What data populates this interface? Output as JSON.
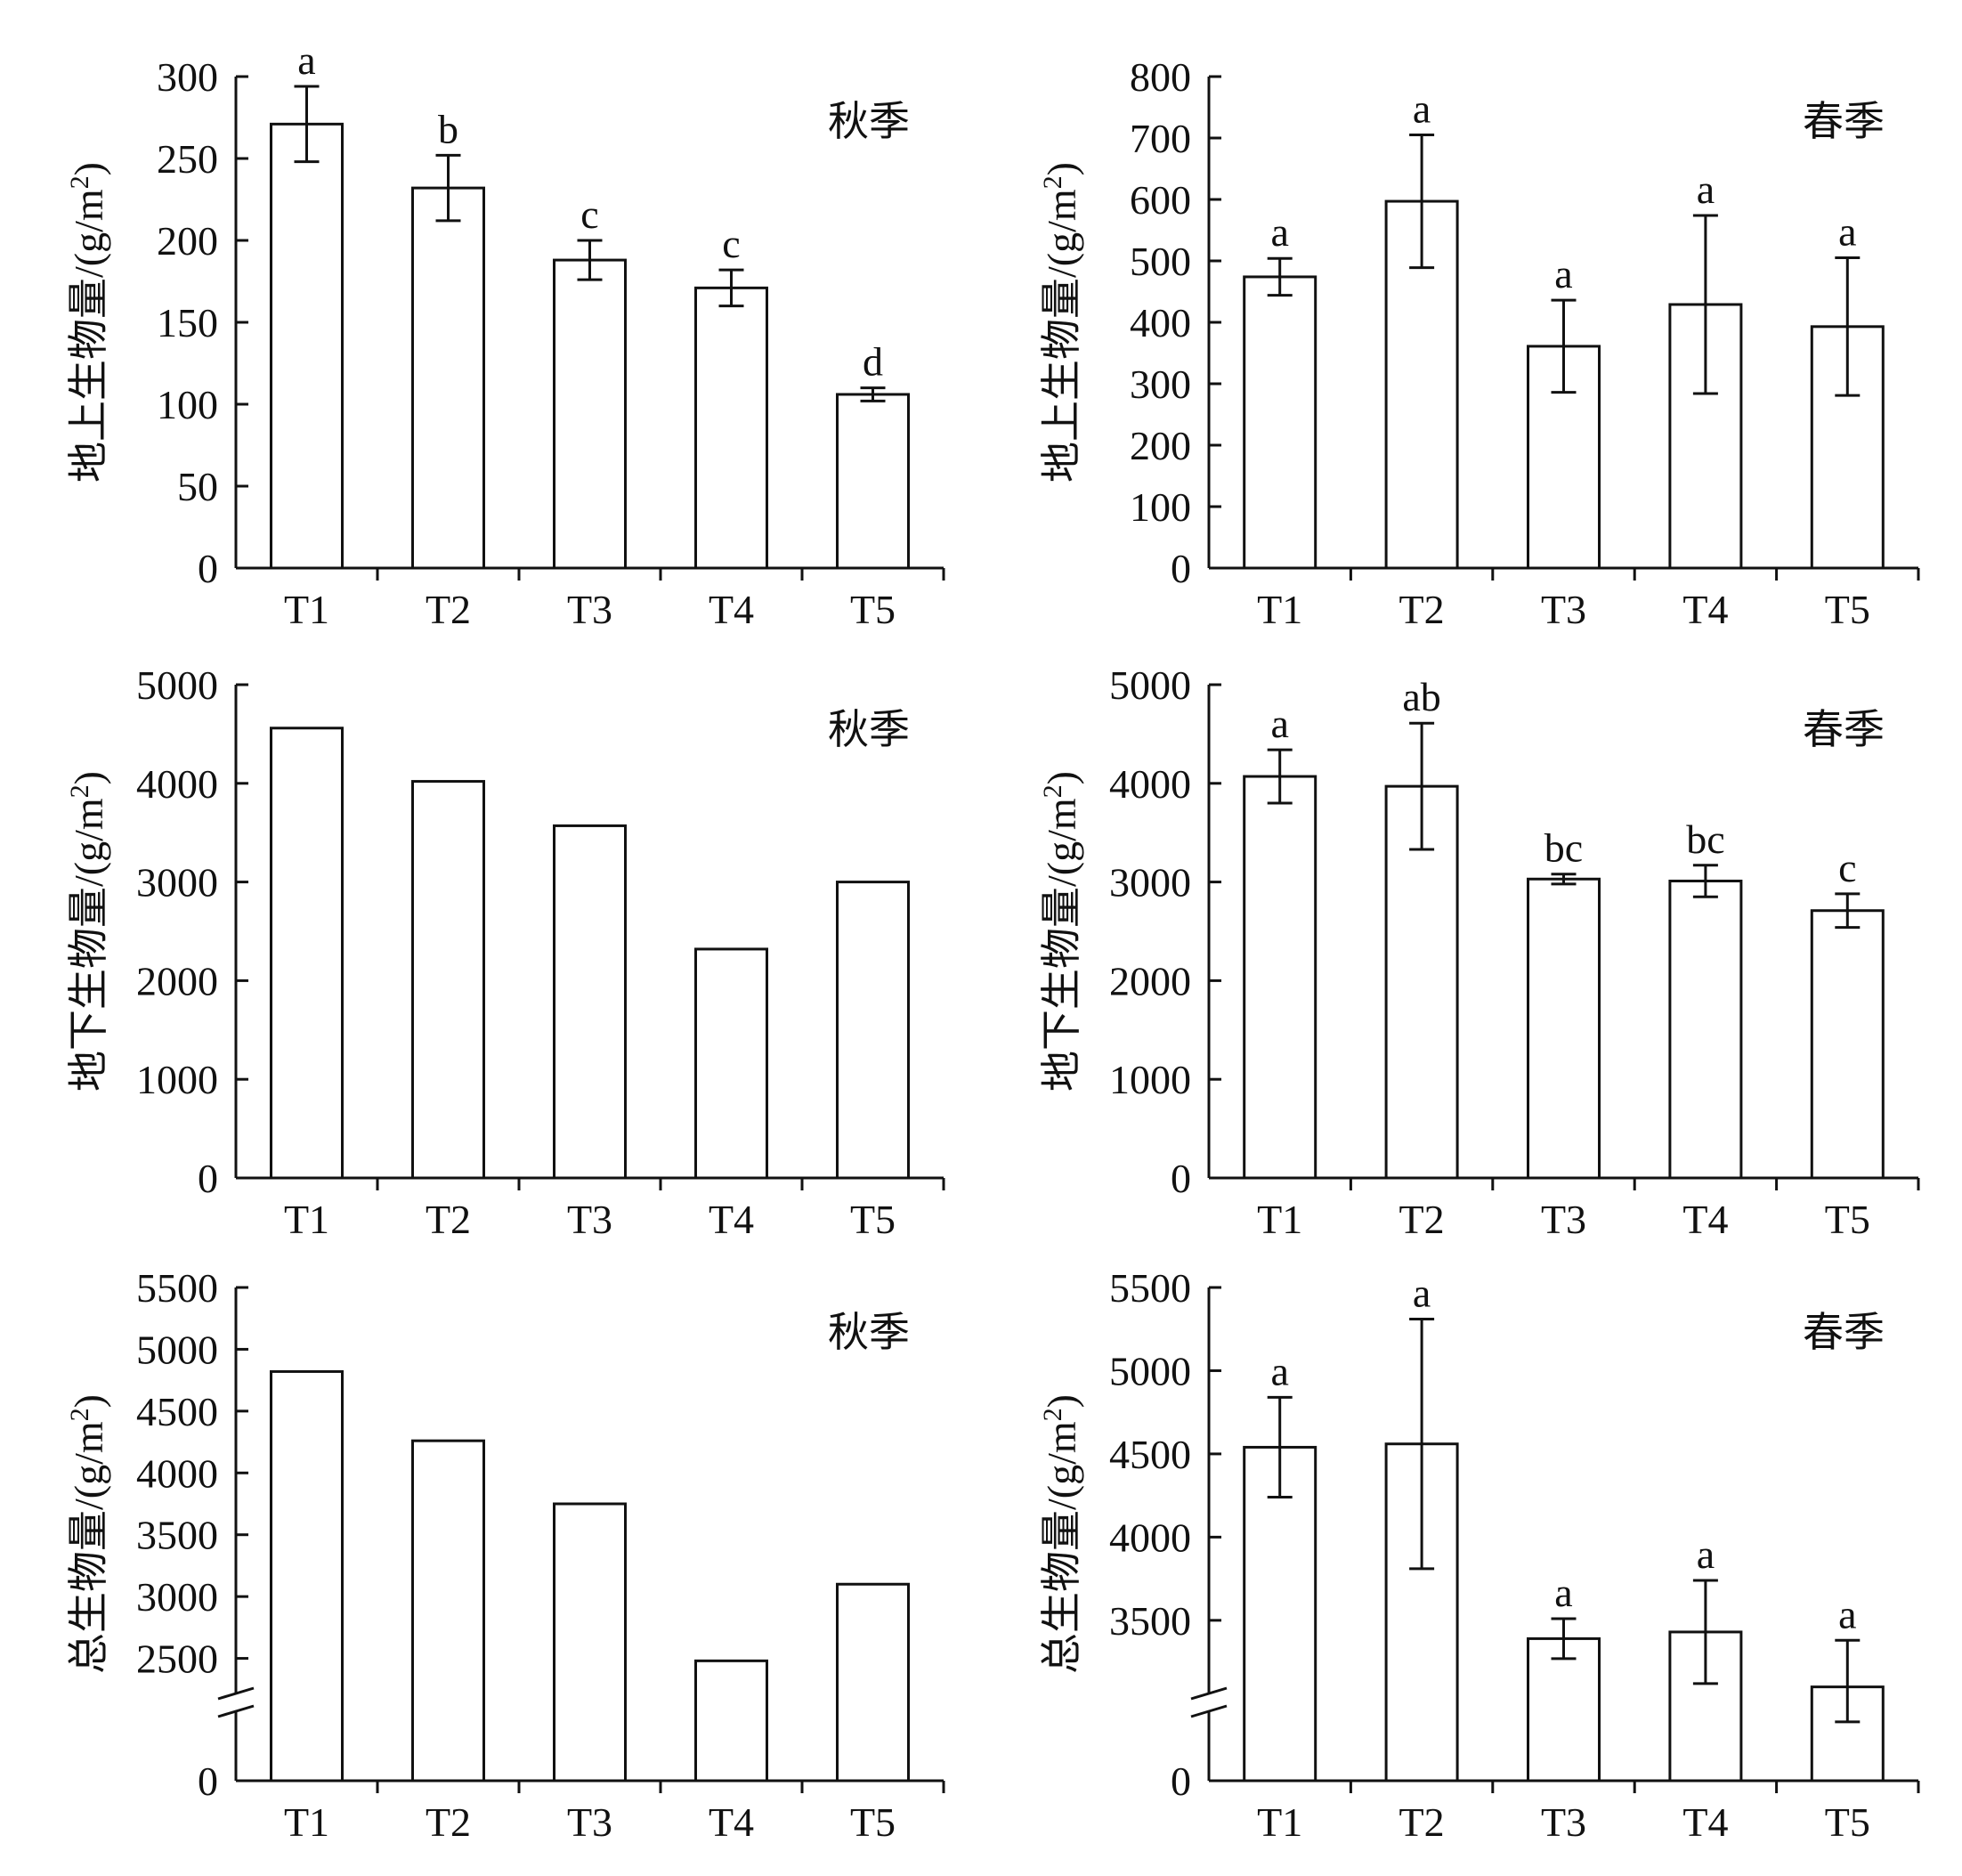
{
  "chart_data": [
    {
      "type": "bar",
      "panel": "top-left",
      "season_label": "秋季",
      "ylabel": "地上生物量/(g/m2)",
      "categories": [
        "T1",
        "T2",
        "T3",
        "T4",
        "T5"
      ],
      "values": [
        271,
        232,
        188,
        171,
        106
      ],
      "error": [
        23,
        20,
        12,
        11,
        4
      ],
      "significance": [
        "a",
        "b",
        "c",
        "c",
        "d"
      ],
      "ylim": [
        0,
        300
      ],
      "yticks": [
        0,
        50,
        100,
        150,
        200,
        250,
        300
      ],
      "axis_break": false
    },
    {
      "type": "bar",
      "panel": "top-right",
      "season_label": "春季",
      "ylabel": "地上生物量/(g/m2)",
      "categories": [
        "T1",
        "T2",
        "T3",
        "T4",
        "T5"
      ],
      "values": [
        474,
        597,
        361,
        429,
        393
      ],
      "error": [
        30,
        108,
        75,
        145,
        112
      ],
      "significance": [
        "a",
        "a",
        "a",
        "a",
        "a"
      ],
      "ylim": [
        0,
        800
      ],
      "yticks": [
        0,
        100,
        200,
        300,
        400,
        500,
        600,
        700,
        800
      ],
      "axis_break": false
    },
    {
      "type": "bar",
      "panel": "middle-left",
      "season_label": "秋季",
      "ylabel": "地下生物量/(g/m2)",
      "categories": [
        "T1",
        "T2",
        "T3",
        "T4",
        "T5"
      ],
      "values": [
        4560,
        4020,
        3570,
        2320,
        3000
      ],
      "ylim": [
        0,
        5000
      ],
      "yticks": [
        0,
        1000,
        2000,
        3000,
        4000,
        5000
      ],
      "axis_break": false
    },
    {
      "type": "bar",
      "panel": "middle-right",
      "season_label": "春季",
      "ylabel": "地下生物量/(g/m2)",
      "categories": [
        "T1",
        "T2",
        "T3",
        "T4",
        "T5"
      ],
      "values": [
        4070,
        3970,
        3030,
        3010,
        2710
      ],
      "error": [
        270,
        640,
        50,
        160,
        170
      ],
      "significance": [
        "a",
        "ab",
        "bc",
        "bc",
        "c"
      ],
      "ylim": [
        0,
        5000
      ],
      "yticks": [
        0,
        1000,
        2000,
        3000,
        4000,
        5000
      ],
      "axis_break": false
    },
    {
      "type": "bar",
      "panel": "bottom-left",
      "season_label": "秋季",
      "ylabel": "总生物量/(g/m2)",
      "categories": [
        "T1",
        "T2",
        "T3",
        "T4",
        "T5"
      ],
      "values": [
        4820,
        4260,
        3750,
        2480,
        3100
      ],
      "ylim": [
        0,
        5500
      ],
      "yticks": [
        0,
        2500,
        3000,
        3500,
        4000,
        4500,
        5000,
        5500
      ],
      "axis_break": true,
      "break_range": [
        0,
        2000
      ]
    },
    {
      "type": "bar",
      "panel": "bottom-right",
      "season_label": "春季",
      "ylabel": "总生物量/(g/m2)",
      "categories": [
        "T1",
        "T2",
        "T3",
        "T4",
        "T5"
      ],
      "values": [
        4540,
        4560,
        3390,
        3430,
        3100
      ],
      "error": [
        300,
        750,
        120,
        310,
        280
      ],
      "significance": [
        "a",
        "a",
        "a",
        "a",
        "a"
      ],
      "ylim": [
        0,
        5500
      ],
      "yticks": [
        0,
        3500,
        4000,
        4500,
        5000,
        5500
      ],
      "axis_break": true,
      "break_range": [
        0,
        2900
      ]
    }
  ]
}
